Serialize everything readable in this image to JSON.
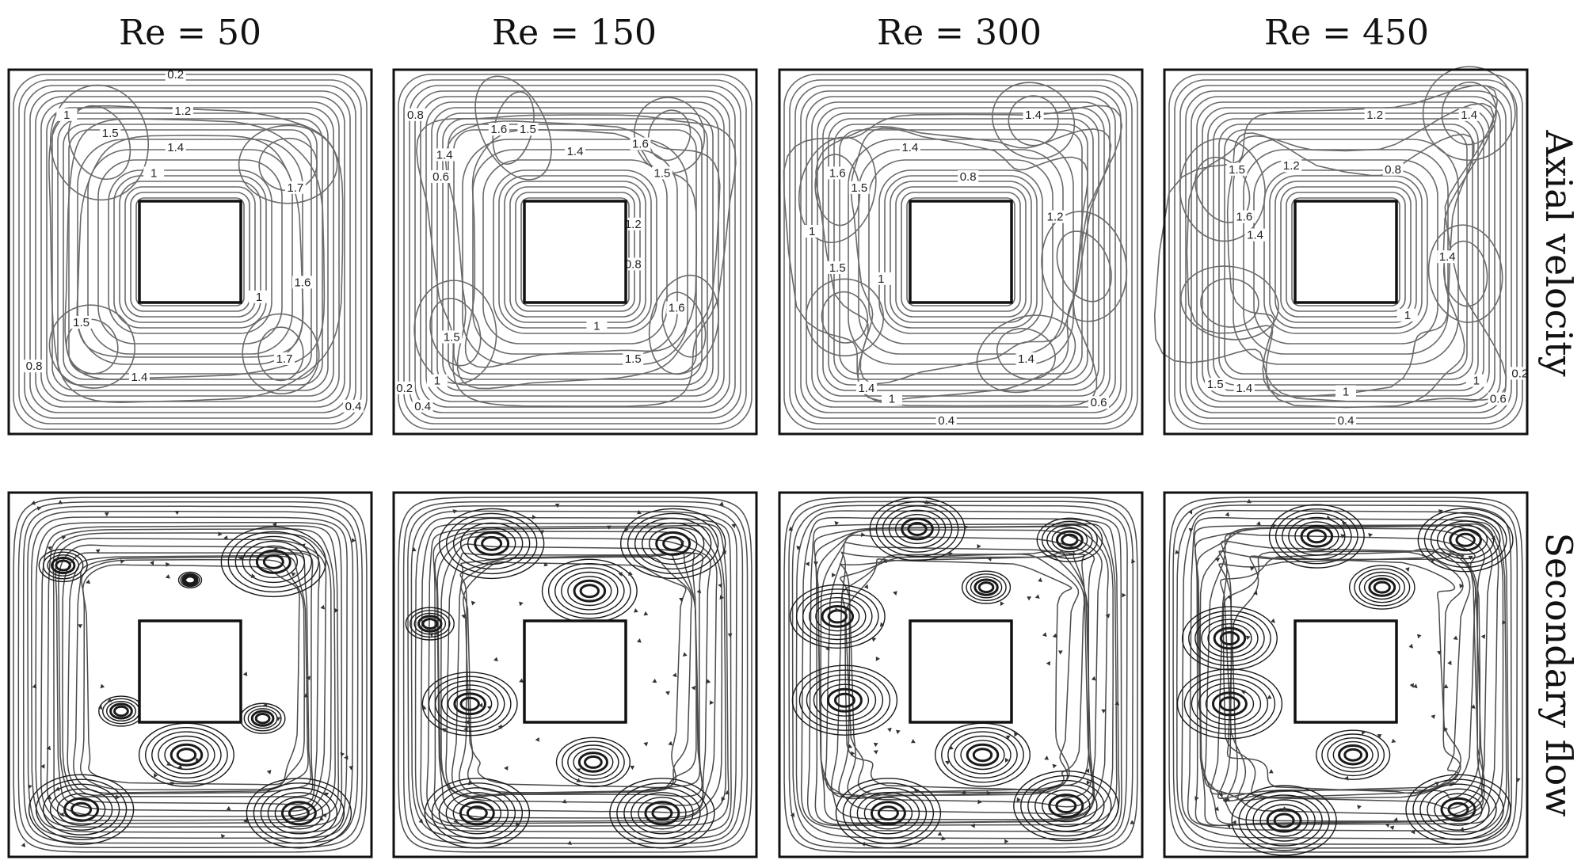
{
  "figure": {
    "columns": [
      "Re = 50",
      "Re = 150",
      "Re = 300",
      "Re = 450"
    ],
    "rows": [
      "Axial velocity",
      "Secondary flow"
    ]
  },
  "contour_labels": [
    [
      "0.2",
      "1",
      "1.2",
      "1.5",
      "1.4",
      "1",
      "1.7",
      "1.6",
      "1.5",
      "1",
      "1.7",
      "0.8",
      "1.4",
      "0.4"
    ],
    [
      "0.8",
      "1.6",
      "1.5",
      "1.6",
      "1.4",
      "1.4",
      "1.5",
      "0.6",
      "1.2",
      "0.8",
      "1.6",
      "1.5",
      "1",
      "1.5",
      "0.2",
      "1",
      "0.4"
    ],
    [
      "1.4",
      "1.4",
      "1.6",
      "1.5",
      "0.8",
      "1.2",
      "1",
      "1.5",
      "1",
      "1.4",
      "1.4",
      "1",
      "0.6",
      "0.4"
    ],
    [
      "1.2",
      "1.4",
      "1.5",
      "1.2",
      "0.8",
      "1.6",
      "1.4",
      "1.4",
      "1",
      "1.5",
      "1.4",
      "1",
      "1",
      "0.6",
      "0.2",
      "0.4"
    ]
  ]
}
